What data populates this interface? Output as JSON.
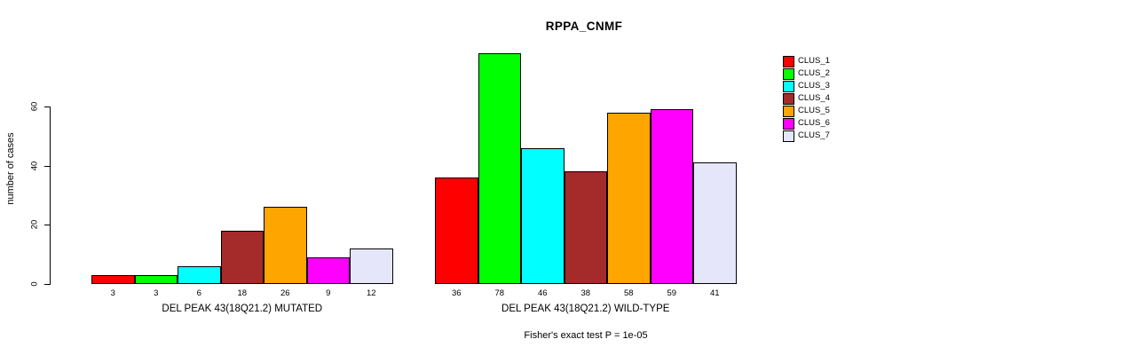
{
  "chart_data": {
    "type": "bar",
    "title": "RPPA_CNMF",
    "ylabel": "number of cases",
    "xlabel": "",
    "ylim": [
      0,
      80
    ],
    "yticks": [
      0,
      20,
      40,
      60
    ],
    "grid": false,
    "legend_position": "right",
    "series_labels": [
      "CLUS_1",
      "CLUS_2",
      "CLUS_3",
      "CLUS_4",
      "CLUS_5",
      "CLUS_6",
      "CLUS_7"
    ],
    "colors": [
      "#FF0000",
      "#00FF00",
      "#00FFFF",
      "#A52A2A",
      "#FFA500",
      "#FF00FF",
      "#E6E6FA"
    ],
    "groups": [
      {
        "label": "DEL PEAK 43(18Q21.2) MUTATED",
        "values": [
          3,
          3,
          6,
          18,
          26,
          9,
          12
        ]
      },
      {
        "label": "DEL PEAK 43(18Q21.2) WILD-TYPE",
        "values": [
          36,
          78,
          46,
          38,
          58,
          59,
          41
        ]
      }
    ],
    "annotation": "Fisher's exact test P = 1e-05"
  }
}
